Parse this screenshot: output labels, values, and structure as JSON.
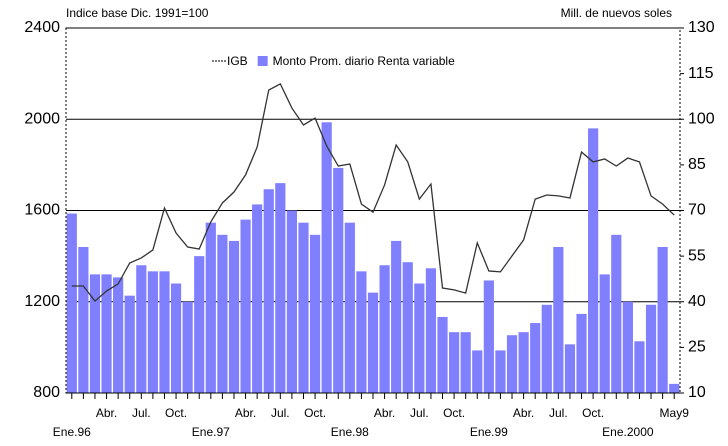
{
  "chart_data": {
    "type": "combo",
    "y_label": "Indice base Dic. 1991=100",
    "y2_label": "Mill. de nuevos soles",
    "categories": [
      "Ene.96",
      null,
      null,
      "Abr.",
      null,
      null,
      "Jul.",
      null,
      null,
      "Oct.",
      null,
      null,
      "Ene.97",
      null,
      null,
      "Abr.",
      null,
      null,
      "Jul.",
      null,
      null,
      "Oct.",
      null,
      null,
      "Ene.98",
      null,
      null,
      "Abr.",
      null,
      null,
      "Jul.",
      null,
      null,
      "Oct.",
      null,
      null,
      "Ene.99",
      null,
      null,
      "Abr.",
      null,
      null,
      "Jul.",
      null,
      null,
      "Oct.",
      null,
      null,
      "Ene.2000",
      null,
      null,
      null,
      "May9"
    ],
    "series": [
      {
        "name": "Monto Prom. diario Renta variable",
        "kind": "bar",
        "axis": "y2",
        "color": "#8080ff",
        "values": [
          69,
          58,
          49,
          49,
          48,
          42,
          52,
          50,
          50,
          46,
          40,
          55,
          66,
          62,
          60,
          67,
          72,
          77,
          79,
          70,
          66,
          62,
          99,
          84,
          66,
          50,
          43,
          52,
          60,
          53,
          46,
          51,
          35,
          30,
          30,
          24,
          47,
          24,
          29,
          30,
          33,
          39,
          58,
          26,
          36,
          97,
          49,
          62,
          40,
          27,
          39,
          58,
          13
        ]
      },
      {
        "name": "IGB",
        "kind": "line",
        "axis": "y",
        "color": "#333333",
        "values": [
          1269,
          1269,
          1203,
          1247,
          1278,
          1370,
          1392,
          1427,
          1611,
          1501,
          1440,
          1431,
          1550,
          1633,
          1681,
          1756,
          1878,
          2128,
          2155,
          2049,
          1975,
          2005,
          1883,
          1795,
          1804,
          1628,
          1593,
          1712,
          1887,
          1813,
          1650,
          1716,
          1260,
          1252,
          1238,
          1458,
          1335,
          1331,
          1401,
          1471,
          1650,
          1668,
          1664,
          1655,
          1856,
          1813,
          1826,
          1795,
          1830,
          1813,
          1664,
          1628,
          1580
        ]
      }
    ],
    "ylim": [
      800,
      2400
    ],
    "yticks": [
      800,
      1200,
      1600,
      2000,
      2400
    ],
    "y2lim": [
      10,
      130
    ],
    "y2ticks": [
      10,
      25,
      40,
      55,
      70,
      85,
      100,
      115,
      130
    ],
    "grid": true,
    "legend": "top"
  }
}
